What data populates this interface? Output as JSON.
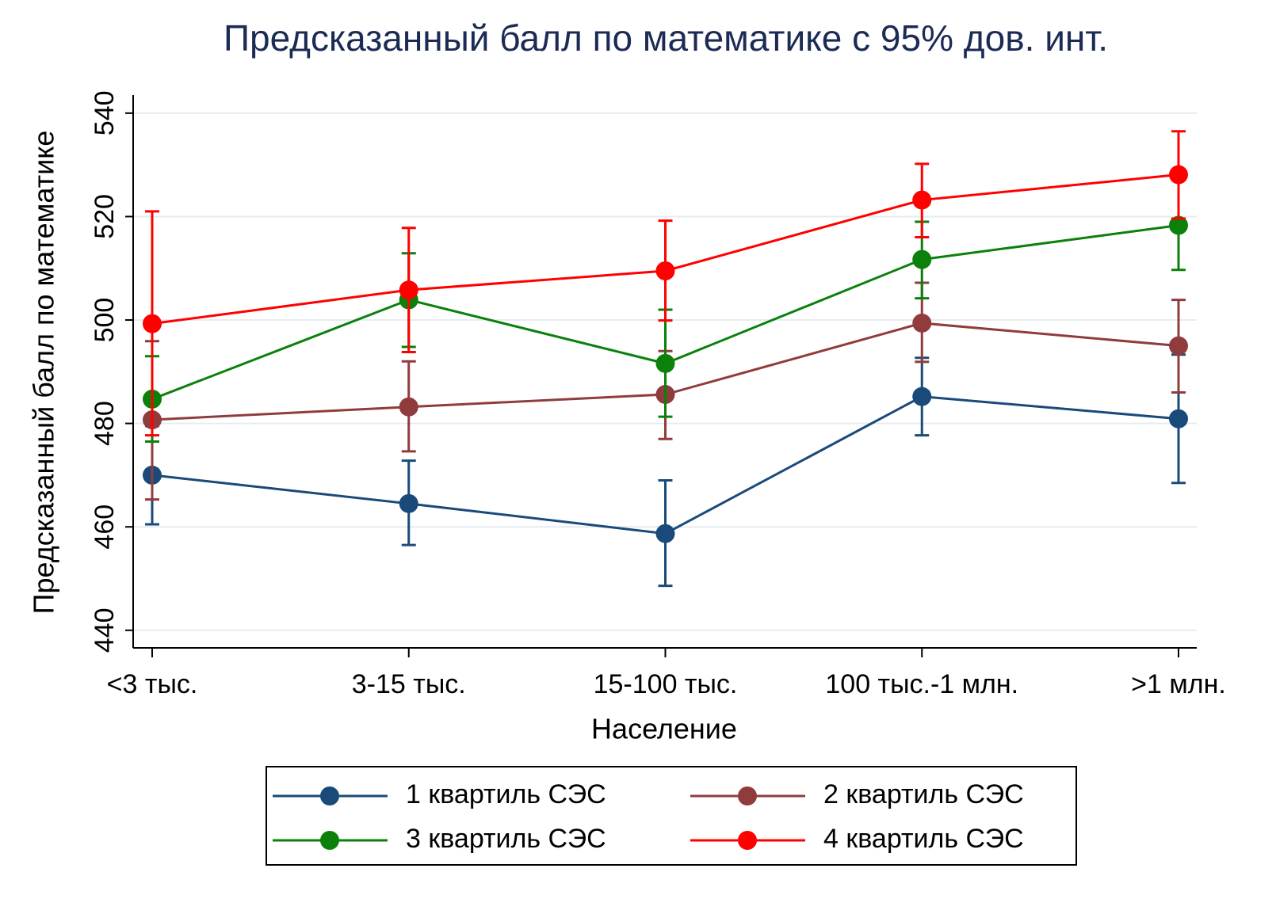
{
  "chart_data": {
    "type": "line",
    "title": "Предсказанный балл по математике с 95% дов. инт.",
    "x_label": "Население",
    "y_label": "Предсказанный балл по математике",
    "categories": [
      "<3 тыс.",
      "3-15 тыс.",
      "15-100 тыс.",
      "100 тыс.-1 млн.",
      ">1 млн."
    ],
    "ylim": [
      436.6,
      543.5
    ],
    "yticks": [
      440,
      460,
      480,
      500,
      520,
      540
    ],
    "grid": true,
    "legend": "bottom",
    "series": [
      {
        "name": "1 квартиль СЭС",
        "color": "#1a4a7a",
        "values": [
          470.0,
          464.5,
          458.7,
          485.2,
          480.9
        ],
        "lower": [
          460.5,
          456.5,
          448.6,
          477.7,
          468.5
        ],
        "upper": [
          479.5,
          472.8,
          469.0,
          492.7,
          493.3
        ]
      },
      {
        "name": "2 квартиль СЭС",
        "color": "#903c3c",
        "values": [
          480.7,
          483.2,
          485.6,
          499.4,
          495.0
        ],
        "lower": [
          465.3,
          474.6,
          477.0,
          491.9,
          486.0
        ],
        "upper": [
          495.9,
          492.0,
          494.0,
          507.2,
          503.9
        ]
      },
      {
        "name": "3 квартиль СЭС",
        "color": "#0b800b",
        "values": [
          484.7,
          503.9,
          491.6,
          511.7,
          518.3
        ],
        "lower": [
          476.5,
          494.8,
          481.3,
          504.2,
          509.7
        ],
        "upper": [
          493.0,
          512.9,
          502.0,
          519.0,
          527.4
        ]
      },
      {
        "name": "4 квартиль СЭС",
        "color": "#ff0000",
        "values": [
          499.3,
          505.8,
          509.5,
          523.2,
          528.1
        ],
        "lower": [
          477.7,
          493.8,
          499.9,
          516.0,
          519.6
        ],
        "upper": [
          521.0,
          517.8,
          519.2,
          530.2,
          536.5
        ]
      }
    ]
  }
}
